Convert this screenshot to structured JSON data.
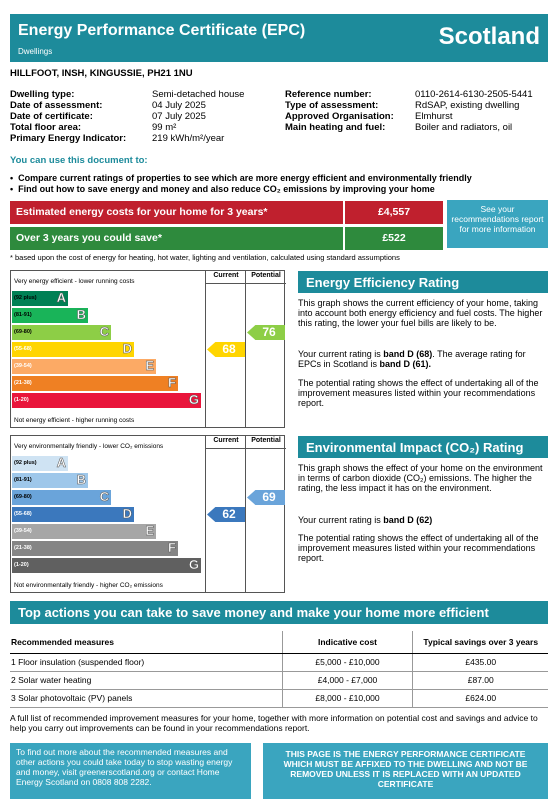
{
  "header": {
    "title": "Energy Performance Certificate (EPC)",
    "subtitle": "Dwellings",
    "country": "Scotland"
  },
  "address": "HILLFOOT, INSH, KINGUSSIE, PH21 1NU",
  "details_left": [
    {
      "k": "Dwelling type:",
      "v": "Semi-detached house"
    },
    {
      "k": "Date of assessment:",
      "v": "04 July 2025"
    },
    {
      "k": "Date of certificate:",
      "v": "07 July 2025"
    },
    {
      "k": "Total floor area:",
      "v": "99 m²"
    },
    {
      "k": "Primary Energy Indicator:",
      "v": "219 kWh/m²/year"
    }
  ],
  "details_right": [
    {
      "k": "Reference number:",
      "v": "0110-2614-6130-2505-5441"
    },
    {
      "k": "Type of assessment:",
      "v": "RdSAP, existing dwelling"
    },
    {
      "k": "Approved Organisation:",
      "v": "Elmhurst"
    },
    {
      "k": "Main heating and fuel:",
      "v": "Boiler and radiators, oil"
    }
  ],
  "use_title": "You can use this document to:",
  "bullets": [
    "Compare current ratings of properties to see which are more energy efficient and environmentally friendly",
    "Find out how to save energy and money and also reduce CO₂ emissions by improving your home"
  ],
  "costs": {
    "est_label": "Estimated energy costs for your home for 3 years*",
    "est_value": "£4,557",
    "save_label": "Over 3 years you could save*",
    "save_value": "£522",
    "see_box": "See your recommendations report for more information",
    "note": "* based upon the cost of energy for heating, hot water, lighting and ventilation, calculated using standard assumptions"
  },
  "ee_chart": {
    "col_current": "Current",
    "col_potential": "Potential",
    "top_caption": "Very energy efficient - lower running costs",
    "bottom_caption": "Not energy efficient - higher running costs",
    "bands": [
      {
        "range": "(92 plus)",
        "letter": "A",
        "color": "#008054"
      },
      {
        "range": "(81-91)",
        "letter": "B",
        "color": "#19b459"
      },
      {
        "range": "(69-80)",
        "letter": "C",
        "color": "#8dce46"
      },
      {
        "range": "(55-68)",
        "letter": "D",
        "color": "#ffd500"
      },
      {
        "range": "(39-54)",
        "letter": "E",
        "color": "#fcaa65"
      },
      {
        "range": "(21-38)",
        "letter": "F",
        "color": "#ef8023"
      },
      {
        "range": "(1-20)",
        "letter": "G",
        "color": "#e9153b"
      }
    ],
    "current": 68,
    "potential": 76,
    "current_color": "#ffd500",
    "potential_color": "#8dce46"
  },
  "ei_chart": {
    "col_current": "Current",
    "col_potential": "Potential",
    "top_caption": "Very environmentally friendly - lower CO₂ emissions",
    "bottom_caption": "Not environmentally friendly - higher CO₂ emissions",
    "bands": [
      {
        "range": "(92 plus)",
        "letter": "A",
        "color": "#cfe3f3"
      },
      {
        "range": "(81-91)",
        "letter": "B",
        "color": "#9ec7ea"
      },
      {
        "range": "(69-80)",
        "letter": "C",
        "color": "#6aa4da"
      },
      {
        "range": "(55-68)",
        "letter": "D",
        "color": "#3b78bd"
      },
      {
        "range": "(39-54)",
        "letter": "E",
        "color": "#a6a6a6"
      },
      {
        "range": "(21-38)",
        "letter": "F",
        "color": "#858585"
      },
      {
        "range": "(1-20)",
        "letter": "G",
        "color": "#606060"
      }
    ],
    "current": 62,
    "potential": 69,
    "current_color": "#3b78bd",
    "potential_color": "#6aa4da"
  },
  "eer": {
    "title": "Energy Efficiency Rating",
    "p1": "This graph shows the current efficiency of your home, taking into account both energy efficiency and fuel costs. The higher this rating, the lower your fuel bills are likely to be.",
    "p2a": "Your current rating is ",
    "p2b": "band D (68)",
    "p2c": ". The average rating for EPCs in Scotland is ",
    "p2d": "band D (61).",
    "p3": "The potential rating shows the effect of undertaking all of the improvement measures listed within your recommendations report."
  },
  "eir": {
    "title": "Environmental Impact (CO₂) Rating",
    "p1": "This graph shows the effect of your home on the environment in terms of carbon dioxide (CO₂) emissions. The higher the rating, the less impact it has on the environment.",
    "p2a": "Your current rating is ",
    "p2b": "band D (62)",
    "p3": "The potential rating shows the effect of undertaking all of the improvement measures listed within your recommendations report."
  },
  "actions": {
    "title": "Top actions you can take to save money and make your home more efficient",
    "h1": "Recommended measures",
    "h2": "Indicative cost",
    "h3": "Typical savings over 3 years",
    "rows": [
      {
        "m": "1 Floor insulation (suspended floor)",
        "c": "£5,000 - £10,000",
        "s": "£435.00"
      },
      {
        "m": "2 Solar water heating",
        "c": "£4,000 - £7,000",
        "s": "£87.00"
      },
      {
        "m": "3 Solar photovoltaic (PV) panels",
        "c": "£8,000 - £10,000",
        "s": "£624.00"
      }
    ]
  },
  "full_list": "A full list of recommended improvement measures for your home, together with more information on potential cost and savings and advice to help you carry out improvements can be found in your recommendations report.",
  "box_left": "To find out more about the recommended measures and other actions you could take today to stop wasting energy and money, visit greenerscotland.org or contact Home Energy Scotland on 0808 808 2282.",
  "box_right": "THIS PAGE IS THE ENERGY PERFORMANCE CERTIFICATE WHICH MUST BE AFFIXED TO THE DWELLING AND NOT BE REMOVED UNLESS IT IS REPLACED WITH AN UPDATED CERTIFICATE"
}
